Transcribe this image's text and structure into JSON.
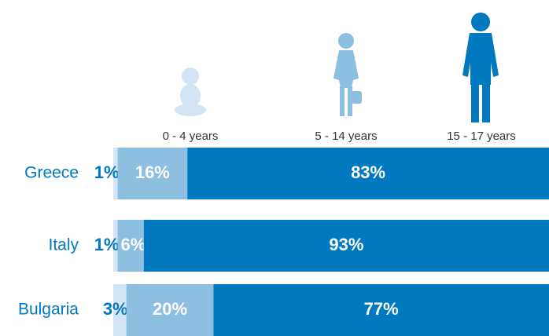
{
  "chart_data": {
    "type": "stacked_bar_horizontal",
    "categories": [
      "Greece",
      "Italy",
      "Bulgaria"
    ],
    "series": [
      {
        "name": "0 - 4 years",
        "color": "#d3e5f4",
        "values": [
          1,
          1,
          3
        ],
        "value_labels": [
          "1%",
          "1%",
          "3%"
        ]
      },
      {
        "name": "5 - 14 years",
        "color": "#8dbfe1",
        "values": [
          16,
          6,
          20
        ],
        "value_labels": [
          "16%",
          "6%",
          "20%"
        ]
      },
      {
        "name": "15 - 17 years",
        "color": "#0079c1",
        "values": [
          83,
          93,
          77
        ],
        "value_labels": [
          "83%",
          "93%",
          "77%"
        ]
      }
    ],
    "xlim": [
      0,
      100
    ]
  }
}
